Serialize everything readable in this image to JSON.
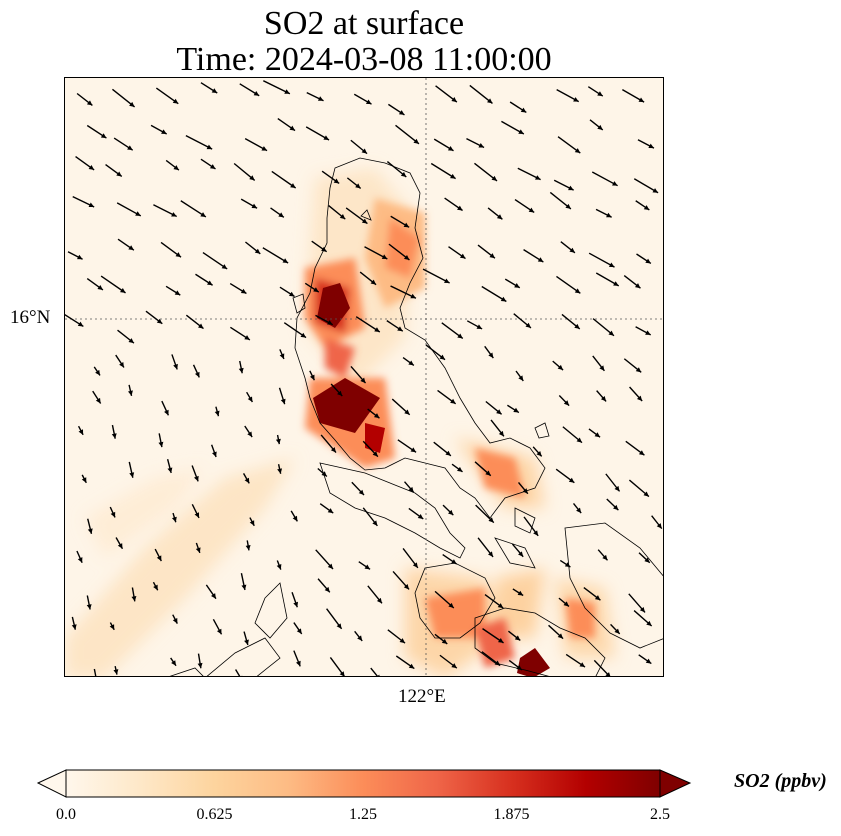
{
  "title": {
    "line1": "SO2 at surface",
    "line2": "Time: 2024-03-08 11:00:00"
  },
  "map": {
    "lat_label": "16°N",
    "lon_label": "122°E",
    "gridline_style": "dotted",
    "coastline_color": "#000000",
    "wind_arrow_color": "#000000"
  },
  "colorbar": {
    "label": "SO2 (ppbv)",
    "ticks": [
      "0.0",
      "0.625",
      "1.25",
      "1.875",
      "2.5"
    ],
    "range": [
      0.0,
      2.5
    ],
    "colormap": "OrRd",
    "extend": "both",
    "colors": [
      "#fff7ec",
      "#fee8c8",
      "#fdd49e",
      "#fdbb84",
      "#fc8d59",
      "#ef6548",
      "#d7301f",
      "#b30000",
      "#7f0000"
    ]
  }
}
